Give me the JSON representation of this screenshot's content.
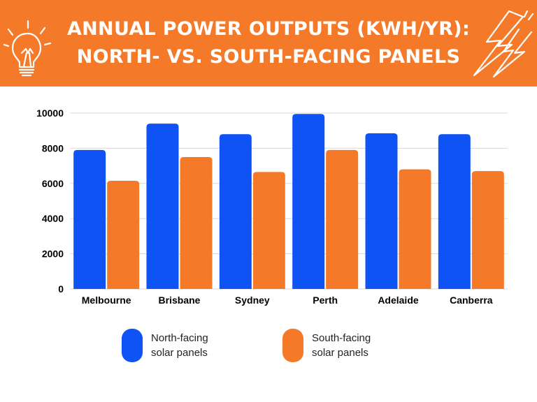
{
  "title": {
    "line1": "ANNUAL POWER OUTPUTS (KWH/YR):",
    "line2": "NORTH- VS. SOUTH-FACING PANELS"
  },
  "colors": {
    "header": "#f47a2a",
    "north": "#1053f5",
    "south": "#f47a2a",
    "grid": "#d9d9d9",
    "text": "#000000"
  },
  "icons": {
    "left": "lightbulb-icon",
    "right": "lightning-bolt-icon"
  },
  "legend": [
    {
      "line1": "North-facing",
      "line2": "solar panels",
      "color": "#1053f5"
    },
    {
      "line1": "South-facing",
      "line2": "solar panels",
      "color": "#f47a2a"
    }
  ],
  "chart_data": {
    "type": "bar",
    "title": "ANNUAL POWER OUTPUTS (KWH/YR): NORTH- VS. SOUTH-FACING PANELS",
    "categories": [
      "Melbourne",
      "Brisbane",
      "Sydney",
      "Perth",
      "Adelaide",
      "Canberra"
    ],
    "series": [
      {
        "name": "North-facing solar panels",
        "values": [
          7900,
          9400,
          8800,
          9950,
          8850,
          8800
        ]
      },
      {
        "name": "South-facing solar panels",
        "values": [
          6150,
          7500,
          6650,
          7900,
          6800,
          6700
        ]
      }
    ],
    "yticks": [
      "0",
      "2000",
      "4000",
      "6000",
      "8000",
      "10000"
    ],
    "ylim": [
      0,
      10000
    ],
    "grid": true,
    "legend_position": "bottom"
  }
}
